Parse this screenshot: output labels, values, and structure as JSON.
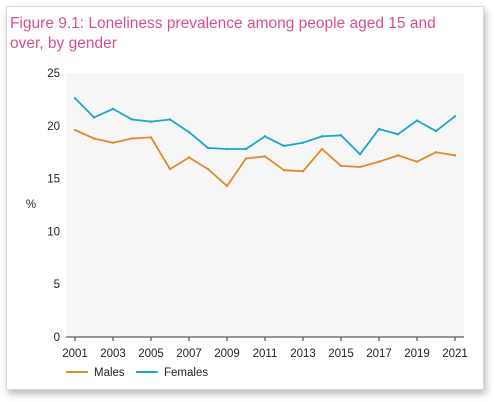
{
  "chart_data": {
    "type": "line",
    "title": "Figure 9.1: Loneliness prevalence among people aged 15 and over, by gender",
    "ylabel": "%",
    "xlabel": "",
    "ylim": [
      0,
      25
    ],
    "yticks": [
      0,
      5,
      10,
      15,
      20,
      25
    ],
    "x": [
      2001,
      2002,
      2003,
      2004,
      2005,
      2006,
      2007,
      2008,
      2009,
      2010,
      2011,
      2012,
      2013,
      2014,
      2015,
      2016,
      2017,
      2018,
      2019,
      2020,
      2021
    ],
    "xticks": [
      2001,
      2003,
      2005,
      2007,
      2009,
      2011,
      2013,
      2015,
      2017,
      2019,
      2021
    ],
    "grid": "none",
    "legend_position": "bottom-left",
    "series": [
      {
        "name": "Males",
        "color": "#e08a2c",
        "values": [
          19.6,
          18.8,
          18.4,
          18.8,
          18.9,
          15.9,
          17.0,
          15.9,
          14.3,
          16.9,
          17.1,
          15.8,
          15.7,
          17.8,
          16.2,
          16.1,
          16.6,
          17.2,
          16.6,
          17.5,
          17.2
        ]
      },
      {
        "name": "Females",
        "color": "#1aa6cf",
        "values": [
          22.6,
          20.8,
          21.6,
          20.6,
          20.4,
          20.6,
          19.4,
          17.9,
          17.8,
          17.8,
          19.0,
          18.1,
          18.4,
          19.0,
          19.1,
          17.3,
          19.7,
          19.2,
          20.5,
          19.5,
          20.9
        ]
      }
    ]
  }
}
